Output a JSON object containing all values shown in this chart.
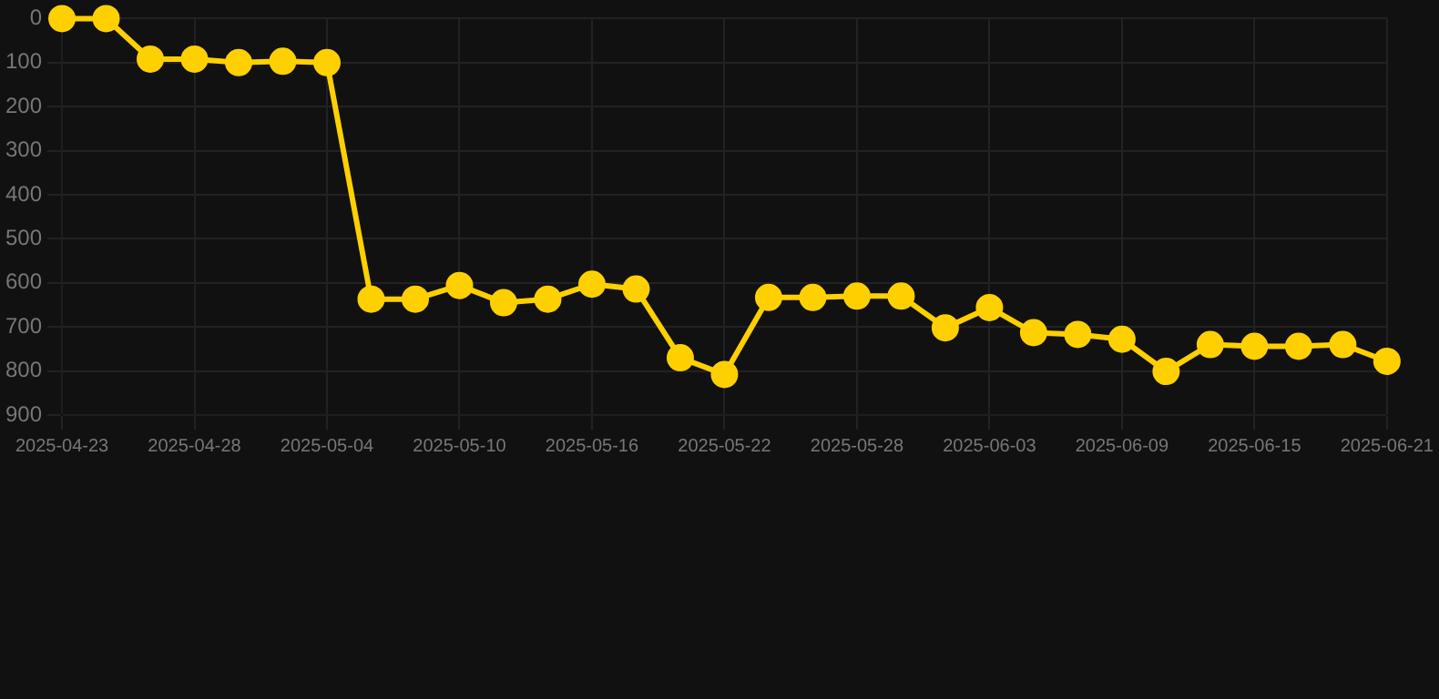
{
  "chart_data": {
    "type": "line",
    "categories": [
      "2025-04-23",
      null,
      null,
      "2025-04-28",
      null,
      null,
      "2025-05-04",
      null,
      null,
      "2025-05-10",
      null,
      null,
      "2025-05-16",
      null,
      null,
      "2025-05-22",
      null,
      null,
      "2025-05-28",
      null,
      null,
      "2025-06-03",
      null,
      null,
      "2025-06-09",
      null,
      null,
      "2025-06-15",
      null,
      null,
      "2025-06-21"
    ],
    "series": [
      {
        "color": "#ffd000",
        "values": [
          0,
          0,
          92,
          92,
          100,
          97,
          100,
          637,
          637,
          606,
          645,
          637,
          603,
          614,
          770,
          808,
          633,
          633,
          630,
          630,
          702,
          656,
          713,
          717,
          728,
          801,
          740,
          744,
          744,
          740,
          778
        ]
      }
    ],
    "ylim": [
      900,
      0
    ],
    "yticks": [
      0,
      100,
      200,
      300,
      400,
      500,
      600,
      700,
      800,
      900
    ],
    "grid": true,
    "marker": "circle",
    "line_style": "solid"
  }
}
